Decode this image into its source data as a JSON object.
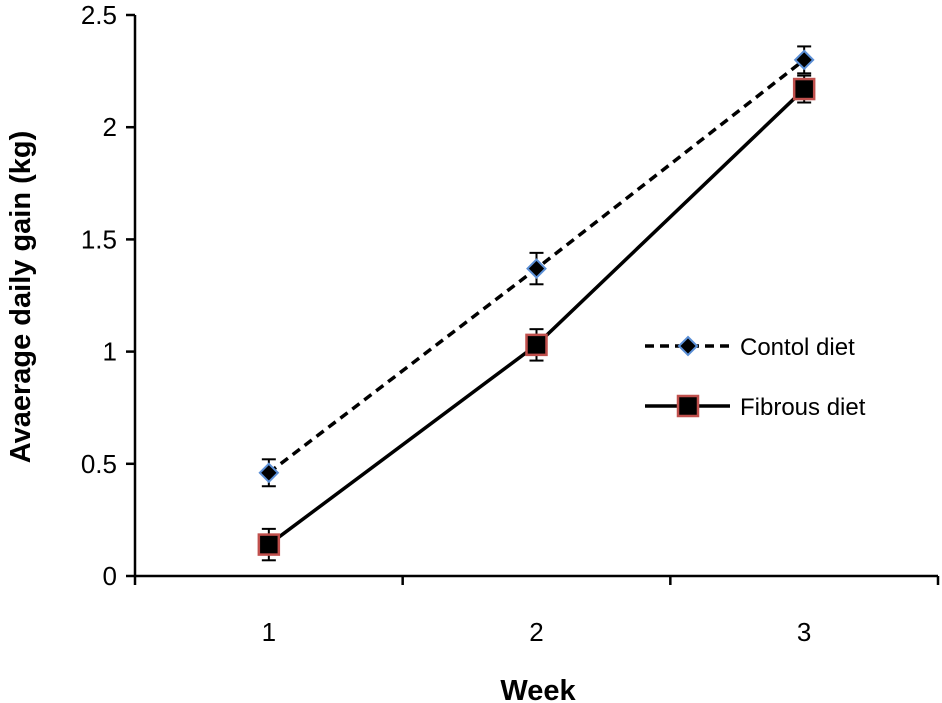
{
  "chart_data": {
    "type": "line",
    "title": "",
    "xlabel": "Week",
    "ylabel": "Avaerage daily gain (kg)",
    "categories": [
      "1",
      "2",
      "3"
    ],
    "ylim": [
      0,
      2.5
    ],
    "yticks": [
      "0",
      "0.5",
      "1",
      "1.5",
      "2",
      "2.5"
    ],
    "grid": false,
    "legend_position": "right",
    "series": [
      {
        "name": "Contol diet",
        "values": [
          0.46,
          1.37,
          2.3
        ],
        "error": [
          0.06,
          0.07,
          0.06
        ],
        "line_style": "dashed",
        "marker": "diamond",
        "marker_fill": "#000000",
        "marker_edge": "#5b8fd6",
        "line_color": "#000000"
      },
      {
        "name": "Fibrous diet",
        "values": [
          0.14,
          1.03,
          2.17
        ],
        "error": [
          0.07,
          0.07,
          0.06
        ],
        "line_style": "solid",
        "marker": "square",
        "marker_fill": "#000000",
        "marker_edge": "#c0504d",
        "line_color": "#000000"
      }
    ]
  }
}
